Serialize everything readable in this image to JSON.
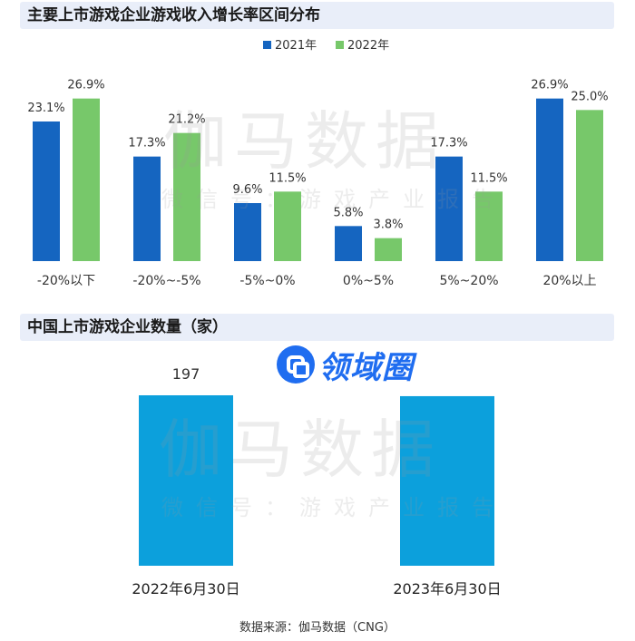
{
  "title_growth": "主要上市游戏企业游戏收入增长率区间分布",
  "title_count": "中国上市游戏企业数量（家）",
  "watermark": {
    "main": "伽马数据",
    "sub": "微信号：游戏产业报告"
  },
  "logo": {
    "text": "领域圈",
    "icon": "logo-badge-icon"
  },
  "source": "数据来源：伽马数据（CNG）",
  "colors": {
    "series_2021": "#1565c0",
    "series_2022": "#77c86a",
    "count_bar": "#0ca0dc",
    "header_bg": "#e9eef9"
  },
  "chart_data": [
    {
      "type": "bar",
      "title": "主要上市游戏企业游戏收入增长率区间分布",
      "categories": [
        "-20%以下",
        "-20%~-5%",
        "-5%~0%",
        "0%~5%",
        "5%~20%",
        "20%以上"
      ],
      "series": [
        {
          "name": "2021年",
          "values": [
            23.1,
            17.3,
            9.6,
            5.8,
            17.3,
            26.9
          ],
          "labels": [
            "23.1%",
            "17.3%",
            "9.6%",
            "5.8%",
            "17.3%",
            "26.9%"
          ]
        },
        {
          "name": "2022年",
          "values": [
            26.9,
            21.2,
            11.5,
            3.8,
            11.5,
            25.0
          ],
          "labels": [
            "26.9%",
            "21.2%",
            "11.5%",
            "3.8%",
            "11.5%",
            "25.0%"
          ]
        }
      ],
      "ylim": [
        0,
        30
      ],
      "legend": "top-center",
      "grid": false
    },
    {
      "type": "bar",
      "title": "中国上市游戏企业数量（家）",
      "categories": [
        "2022年6月30日",
        "2023年6月30日"
      ],
      "values": [
        197,
        196
      ],
      "labels": [
        "197",
        ""
      ],
      "ylim": [
        0,
        240
      ],
      "grid": false
    }
  ]
}
